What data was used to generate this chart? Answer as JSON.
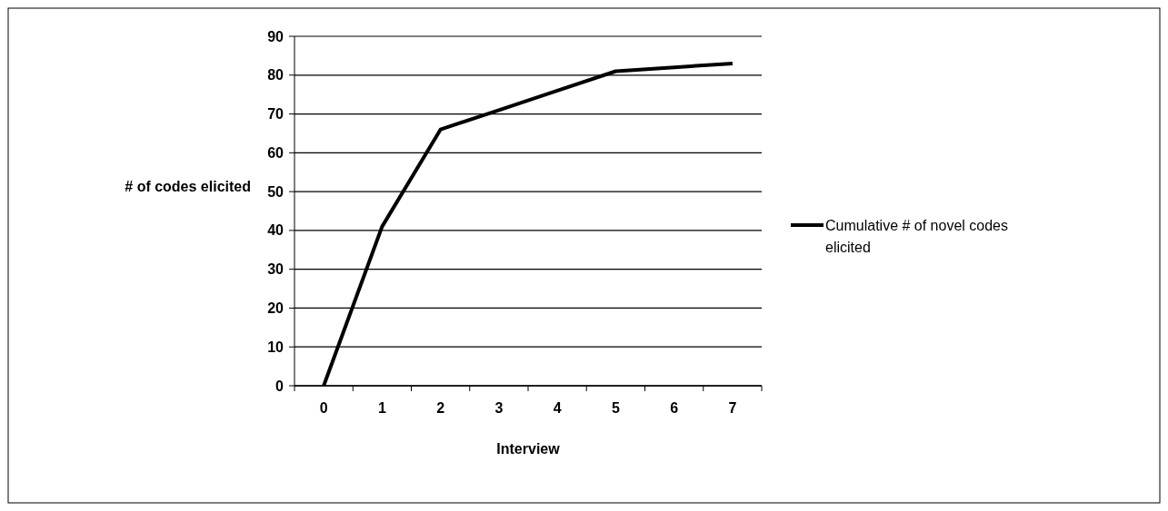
{
  "chart_data": {
    "type": "line",
    "xlabel": "Interview",
    "ylabel": "# of codes elicited",
    "categories": [
      "0",
      "1",
      "2",
      "3",
      "4",
      "5",
      "6",
      "7"
    ],
    "series": [
      {
        "name": "Cumulative # of novel codes elicited",
        "color": "#000000",
        "values": [
          0,
          41,
          66,
          71,
          76,
          81,
          82,
          83
        ]
      }
    ],
    "ylim": [
      0,
      90
    ],
    "yticks": [
      0,
      10,
      20,
      30,
      40,
      50,
      60,
      70,
      80,
      90
    ],
    "grid": "y",
    "legend": "right",
    "marker": "none",
    "line_style": "solid"
  }
}
